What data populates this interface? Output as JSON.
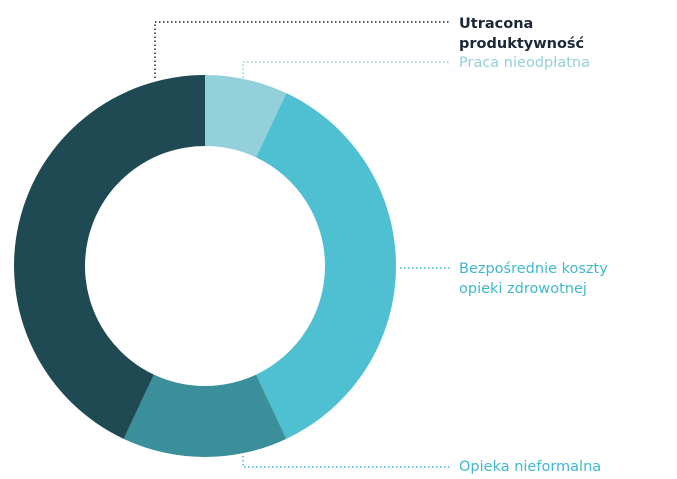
{
  "chart_data": {
    "type": "donut",
    "categories": [
      "Praca nieodpłatna",
      "Bezpośrednie koszty opieki zdrowotnej",
      "Opieka nieformalna",
      "Utracona produktywność"
    ],
    "values": [
      7,
      36,
      14,
      43
    ],
    "colors": [
      "#93d0da",
      "#4fbfd2",
      "#3a8f9a",
      "#1f4a53"
    ],
    "label_colors": [
      "#93d0da",
      "#3fb8cf",
      "#3fb8cf",
      "#1b2838"
    ]
  }
}
